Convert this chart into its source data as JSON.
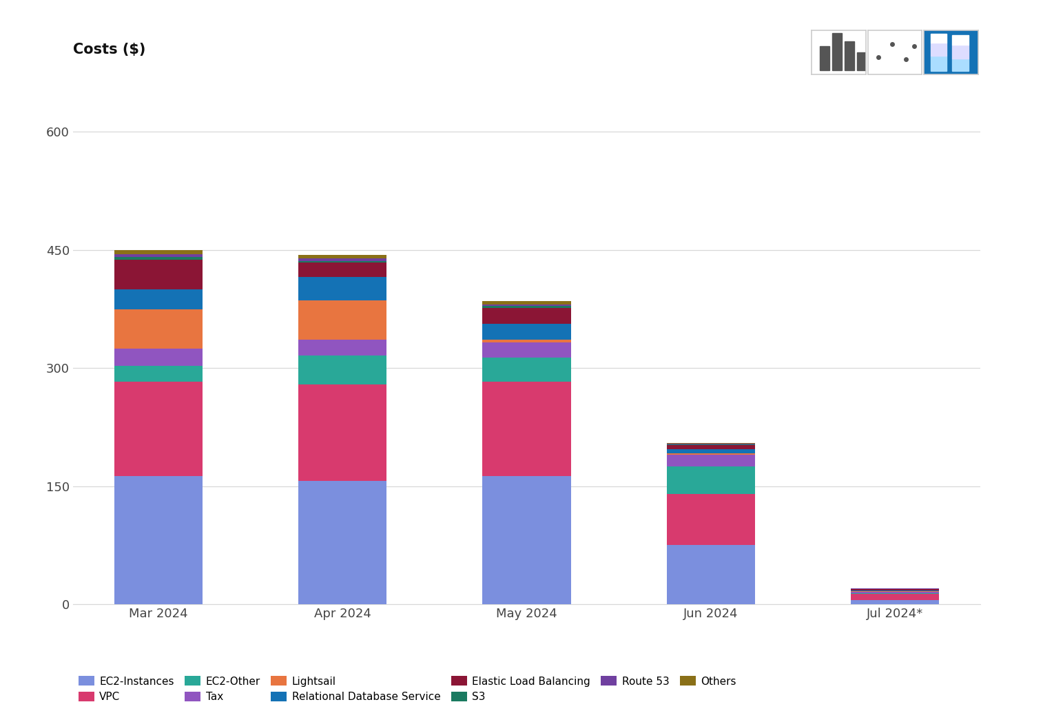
{
  "months": [
    "Mar 2024",
    "Apr 2024",
    "May 2024",
    "Jun 2024",
    "Jul 2024*"
  ],
  "title": "Costs ($)",
  "ylim": [
    0,
    650
  ],
  "yticks": [
    0,
    150,
    300,
    450,
    600
  ],
  "background_color": "#ffffff",
  "grid_color": "#d8d8d8",
  "series": [
    {
      "label": "EC2-Instances",
      "color": "#7b8fde",
      "values": [
        163,
        157,
        163,
        75,
        5
      ]
    },
    {
      "label": "VPC",
      "color": "#d83a6e",
      "values": [
        120,
        122,
        120,
        65,
        8
      ]
    },
    {
      "label": "EC2-Other",
      "color": "#29a898",
      "values": [
        20,
        37,
        30,
        35,
        1.5
      ]
    },
    {
      "label": "Tax",
      "color": "#9055c0",
      "values": [
        22,
        20,
        20,
        15,
        1.5
      ]
    },
    {
      "label": "Lightsail",
      "color": "#e87540",
      "values": [
        50,
        50,
        3,
        2,
        1
      ]
    },
    {
      "label": "Relational Database Service",
      "color": "#1472b5",
      "values": [
        25,
        30,
        20,
        5,
        1
      ]
    },
    {
      "label": "Elastic Load Balancing",
      "color": "#8b1535",
      "values": [
        38,
        18,
        20,
        5,
        1
      ]
    },
    {
      "label": "S3",
      "color": "#1a7a60",
      "values": [
        3,
        2,
        3,
        1,
        0.5
      ]
    },
    {
      "label": "Route 53",
      "color": "#7040a0",
      "values": [
        4,
        3,
        2,
        1,
        0.5
      ]
    },
    {
      "label": "Others",
      "color": "#8a7018",
      "values": [
        5,
        5,
        4,
        1,
        0.5
      ]
    }
  ],
  "legend_order": [
    "EC2-Instances",
    "VPC",
    "EC2-Other",
    "Tax",
    "Lightsail",
    "Relational Database Service",
    "Elastic Load Balancing",
    "S3",
    "Route 53",
    "Others"
  ]
}
